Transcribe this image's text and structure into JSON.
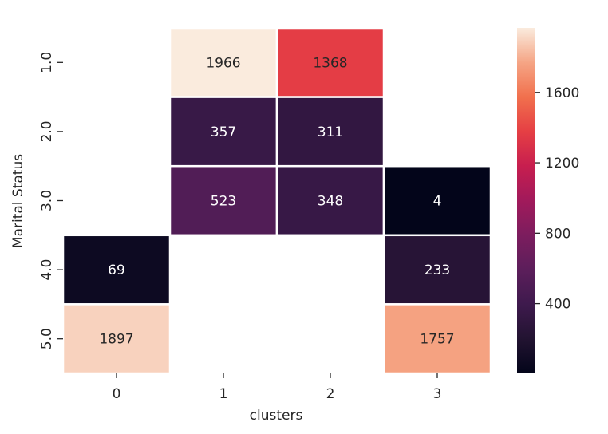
{
  "chart_data": {
    "type": "heatmap",
    "xlabel": "clusters",
    "ylabel": "Marital Status",
    "x_categories": [
      "0",
      "1",
      "2",
      "3"
    ],
    "y_categories": [
      "1.0",
      "2.0",
      "3.0",
      "4.0",
      "5.0"
    ],
    "values": [
      [
        null,
        1966,
        1368,
        null
      ],
      [
        null,
        357,
        311,
        null
      ],
      [
        null,
        523,
        348,
        4
      ],
      [
        69,
        null,
        null,
        233
      ],
      [
        1897,
        null,
        null,
        1757
      ]
    ],
    "colormap": "rocket",
    "vmin": 4,
    "vmax": 1966,
    "colorbar_ticks": [
      "400",
      "800",
      "1200",
      "1600"
    ],
    "colorbar_tick_values": [
      400,
      800,
      1200,
      1600
    ],
    "light_text_color": "#ffffff",
    "dark_text_color": "#262626",
    "gap_color": "#ffffff"
  }
}
